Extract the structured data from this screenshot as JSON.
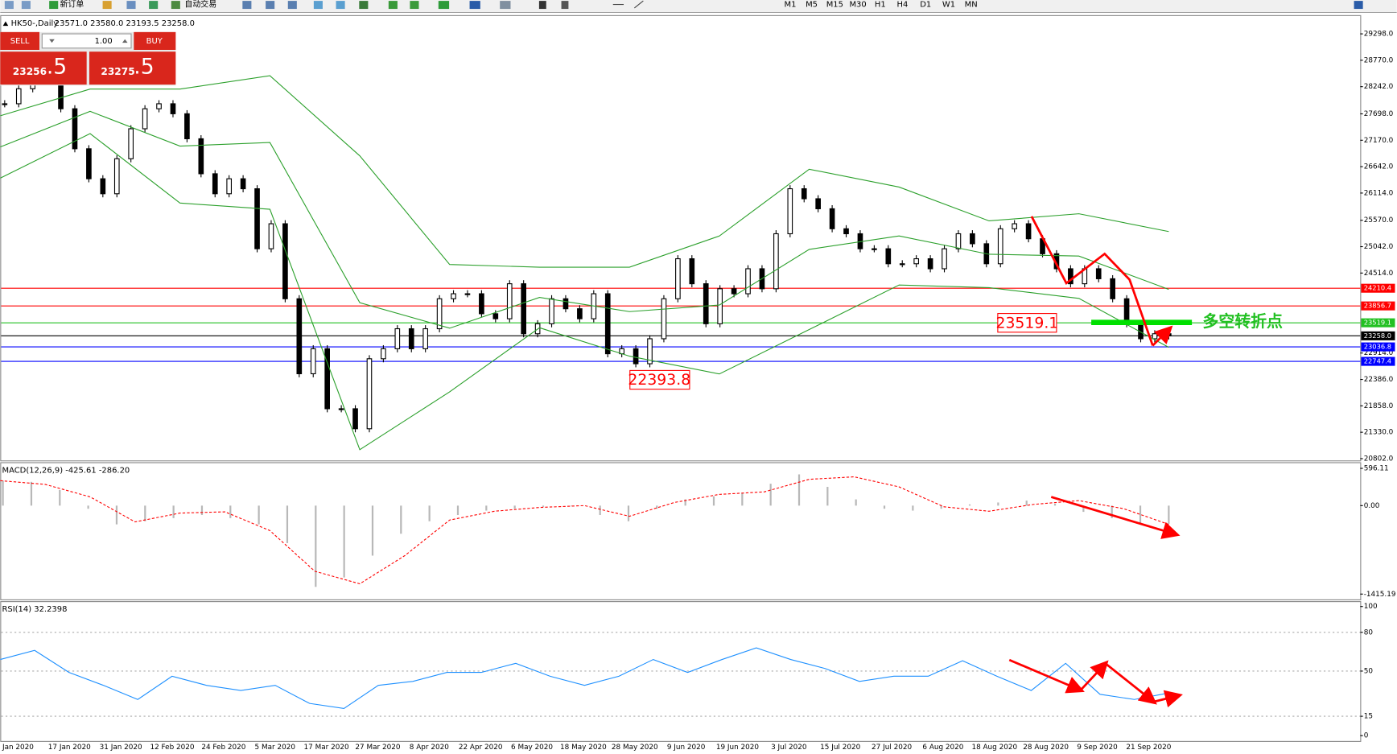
{
  "toolbar": {
    "new_order": "新订单",
    "auto_trading": "自动交易",
    "timeframes": [
      "M1",
      "M5",
      "M15",
      "M30",
      "H1",
      "H4",
      "D1",
      "W1",
      "MN"
    ]
  },
  "trade_panel": {
    "sell": "SELL",
    "volume": "1.00",
    "buy": "BUY",
    "bid_main": "23256",
    "bid_pips": ".5",
    "ask_main": "23275",
    "ask_pips": ".5"
  },
  "chart_data": [
    {
      "type": "candlestick",
      "title": "HK50-,Daily",
      "ohlc_text": "23571.0 23580.0 23193.5 23258.0",
      "ylim": [
        20766,
        29619
      ],
      "yticks": [
        {
          "value": 29298,
          "label": "29298.0"
        },
        {
          "value": 28770,
          "label": "28770.0"
        },
        {
          "value": 28242,
          "label": "28242.0"
        },
        {
          "value": 27698,
          "label": "27698.0"
        },
        {
          "value": 27170,
          "label": "27170.0"
        },
        {
          "value": 26642,
          "label": "26642.0"
        },
        {
          "value": 26114,
          "label": "26114.0"
        },
        {
          "value": 25570,
          "label": "25570.0"
        },
        {
          "value": 25042,
          "label": "25042.0"
        },
        {
          "value": 24514,
          "label": "24514.0"
        },
        {
          "value": 22914,
          "label": "22914.0"
        },
        {
          "value": 22386,
          "label": "22386.0"
        },
        {
          "value": 21858,
          "label": "21858.0"
        },
        {
          "value": 21330,
          "label": "21330.0"
        },
        {
          "value": 20802,
          "label": "20802.0"
        }
      ],
      "levels": [
        {
          "value": 24210.4,
          "color": "#ff0000"
        },
        {
          "value": 23856.7,
          "color": "#ff0000"
        },
        {
          "value": 23519.1,
          "color": "#22c022"
        },
        {
          "value": 23258,
          "label": "23258.0",
          "color": "#000000"
        },
        {
          "value": 23036.8,
          "color": "#0000ff"
        },
        {
          "value": 22747.4,
          "color": "#0000ff"
        }
      ],
      "series": [
        {
          "style": "candle",
          "color": "#000000",
          "values": [
            27900,
            28200,
            28500,
            28400,
            27800,
            27000,
            26400,
            26100,
            26800,
            27400,
            27800,
            27900,
            27700,
            27200,
            26500,
            26100,
            26400,
            26200,
            25000,
            25500,
            24000,
            22500,
            23000,
            21800,
            21800,
            21400,
            22800,
            23000,
            23400,
            23000,
            23400,
            24000,
            24100,
            24100,
            23700,
            23600,
            24300,
            23300,
            23500,
            24000,
            23800,
            23600,
            24100,
            22900,
            23000,
            22700,
            23200,
            24000,
            24800,
            24300,
            23500,
            24200,
            24100,
            24600,
            24200,
            25300,
            26200,
            26000,
            25800,
            25400,
            25300,
            25000,
            25000,
            24700,
            24700,
            24800,
            24600,
            25000,
            25300,
            25100,
            24700,
            25400,
            25500,
            25200,
            24900,
            24600,
            24300,
            24600,
            24400,
            24000,
            23500,
            23200,
            23300,
            23258
          ]
        },
        {
          "style": "line",
          "color": "#2ca02c",
          "values": [
            27660,
            28194,
            28194,
            28461,
            26858,
            24685,
            24632,
            24632,
            25255,
            26591,
            26235,
            25558,
            25700,
            25344
          ]
        },
        {
          "style": "line",
          "color": "#2ca02c",
          "values": [
            27037,
            27749,
            27054,
            27125,
            23920,
            23412,
            24027,
            23742,
            23875,
            24988,
            25256,
            24890,
            24854,
            24187
          ]
        },
        {
          "style": "line",
          "color": "#2ca02c",
          "values": [
            26413,
            27303,
            25914,
            25789,
            20981,
            22138,
            23421,
            22851,
            22495,
            23385,
            24276,
            24222,
            24008,
            23029
          ]
        }
      ],
      "annotations": [
        "23519.1",
        "22393.8",
        "多空转折点"
      ]
    },
    {
      "type": "macd",
      "title": "MACD(12,26,9) -425.61 -286.20",
      "ylim": [
        -1500,
        680
      ],
      "yticks": [
        596.11,
        {
          "value": 0,
          "label": "0.00"
        },
        -1415.19
      ],
      "series": [
        {
          "style": "histogram",
          "color": "#b8b8b8",
          "values": [
            400,
            380,
            250,
            -50,
            -300,
            -250,
            -200,
            -150,
            -200,
            -300,
            -600,
            -1300,
            -1150,
            -800,
            -450,
            -250,
            -150,
            -80,
            -50,
            -20,
            -10,
            -150,
            -250,
            -50,
            100,
            150,
            200,
            350,
            500,
            300,
            100,
            -50,
            -80,
            -50,
            20,
            50,
            80,
            30,
            -100,
            -200,
            -280,
            -290
          ]
        },
        {
          "style": "dashed",
          "color": "#ff0000",
          "values": [
            400,
            340,
            140,
            -260,
            -120,
            -100,
            -400,
            -1050,
            -1250,
            -800,
            -230,
            -90,
            -30,
            0,
            -170,
            50,
            180,
            220,
            420,
            460,
            300,
            -20,
            -90,
            20,
            80,
            -50,
            -300
          ]
        }
      ]
    },
    {
      "type": "rsi",
      "title": "RSI(14) 32.2398",
      "ylim": [
        0,
        100
      ],
      "yticks": [
        0,
        15,
        50,
        80,
        100
      ],
      "dashed_levels": [
        15,
        50,
        80
      ],
      "series": [
        {
          "style": "line",
          "color": "#1e90ff",
          "values": [
            59,
            66,
            49,
            39,
            28,
            46,
            39,
            35,
            39,
            25,
            21,
            39,
            42,
            49,
            49,
            56,
            46,
            39,
            46,
            59,
            49,
            59,
            68,
            59,
            52,
            42,
            46,
            46,
            58,
            46,
            35,
            56,
            32,
            28,
            33
          ]
        }
      ],
      "x_labels": [
        "Jan 2020",
        "17 Jan 2020",
        "31 Jan 2020",
        "12 Feb 2020",
        "24 Feb 2020",
        "5 Mar 2020",
        "17 Mar 2020",
        "27 Mar 2020",
        "8 Apr 2020",
        "22 Apr 2020",
        "6 May 2020",
        "18 May 2020",
        "28 May 2020",
        "9 Jun 2020",
        "19 Jun 2020",
        "3 Jul 2020",
        "15 Jul 2020",
        "27 Jul 2020",
        "6 Aug 2020",
        "18 Aug 2020",
        "28 Aug 2020",
        "9 Sep 2020",
        "21 Sep 2020"
      ]
    }
  ]
}
